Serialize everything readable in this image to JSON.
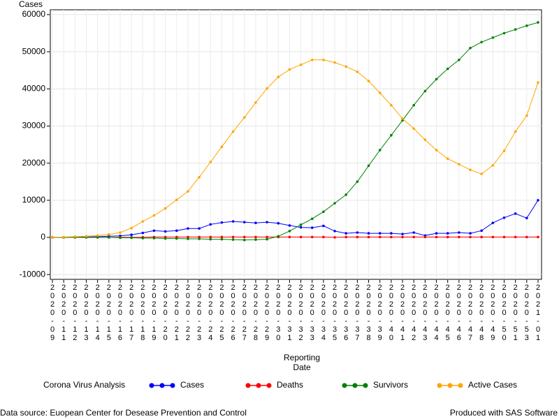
{
  "chart_data": {
    "type": "line",
    "ylabel": "Cases",
    "xlabel": "Reporting Date",
    "legend_title": "Corona Virus Analysis",
    "footnote_left": "Data source: Euopean Center for Desease Prevention and Control",
    "footnote_right": "Produced with SAS Software",
    "categories": [
      "2020-09",
      "2020-11",
      "2020-12",
      "2020-13",
      "2020-14",
      "2020-15",
      "2020-16",
      "2020-17",
      "2020-18",
      "2020-19",
      "2020-20",
      "2020-21",
      "2020-22",
      "2020-23",
      "2020-24",
      "2020-25",
      "2020-26",
      "2020-27",
      "2020-28",
      "2020-29",
      "2020-30",
      "2020-31",
      "2020-32",
      "2020-33",
      "2020-34",
      "2020-35",
      "2020-36",
      "2020-37",
      "2020-38",
      "2020-39",
      "2020-40",
      "2020-41",
      "2020-42",
      "2020-43",
      "2020-44",
      "2020-45",
      "2020-46",
      "2020-47",
      "2020-48",
      "2020-49",
      "2020-50",
      "2020-51",
      "2020-53",
      "2021-01"
    ],
    "series": [
      {
        "name": "Cases",
        "color": "#0000ff",
        "values": [
          0,
          0,
          0,
          100,
          200,
          300,
          400,
          700,
          1200,
          1800,
          1600,
          1800,
          2400,
          2400,
          3500,
          4000,
          4300,
          4100,
          3900,
          4100,
          3800,
          3200,
          2700,
          2600,
          3100,
          1700,
          1100,
          1300,
          1100,
          1100,
          1100,
          900,
          1300,
          500,
          1100,
          1100,
          1300,
          1100,
          1800,
          3900,
          5300,
          6400,
          5200,
          10000
        ]
      },
      {
        "name": "Deaths",
        "color": "#ff0000",
        "values": [
          0,
          0,
          0,
          0,
          0,
          0,
          0,
          0,
          50,
          100,
          100,
          100,
          100,
          100,
          100,
          100,
          100,
          100,
          100,
          100,
          100,
          100,
          100,
          100,
          100,
          0,
          100,
          100,
          100,
          100,
          100,
          100,
          100,
          100,
          100,
          100,
          100,
          100,
          100,
          100,
          100,
          100,
          100,
          100
        ]
      },
      {
        "name": "Survivors",
        "color": "#008000",
        "values": [
          0,
          0,
          0,
          0,
          0,
          0,
          -100,
          -100,
          -200,
          -200,
          -300,
          -300,
          -400,
          -400,
          -500,
          -500,
          -600,
          -700,
          -600,
          -500,
          300,
          1700,
          3400,
          5000,
          6900,
          9200,
          11500,
          15000,
          19300,
          23500,
          27500,
          31500,
          35600,
          39400,
          42600,
          45400,
          47800,
          51000,
          52600,
          53800,
          55000,
          56000,
          57000,
          57900
        ]
      },
      {
        "name": "Active Cases",
        "color": "#ffa500",
        "values": [
          0,
          100,
          200,
          300,
          500,
          800,
          1300,
          2500,
          4300,
          5900,
          7800,
          10100,
          12400,
          16200,
          20300,
          24400,
          28500,
          32300,
          36300,
          40100,
          43200,
          45200,
          46500,
          47800,
          47800,
          47100,
          46000,
          44600,
          42100,
          38900,
          35600,
          32000,
          29300,
          26300,
          23500,
          21200,
          19700,
          18200,
          17100,
          19400,
          23300,
          28500,
          32800,
          41700
        ]
      }
    ],
    "ylim": [
      -11300,
      61300
    ],
    "yticks": [
      -10000,
      0,
      10000,
      20000,
      30000,
      40000,
      50000,
      60000
    ],
    "grid": true
  }
}
